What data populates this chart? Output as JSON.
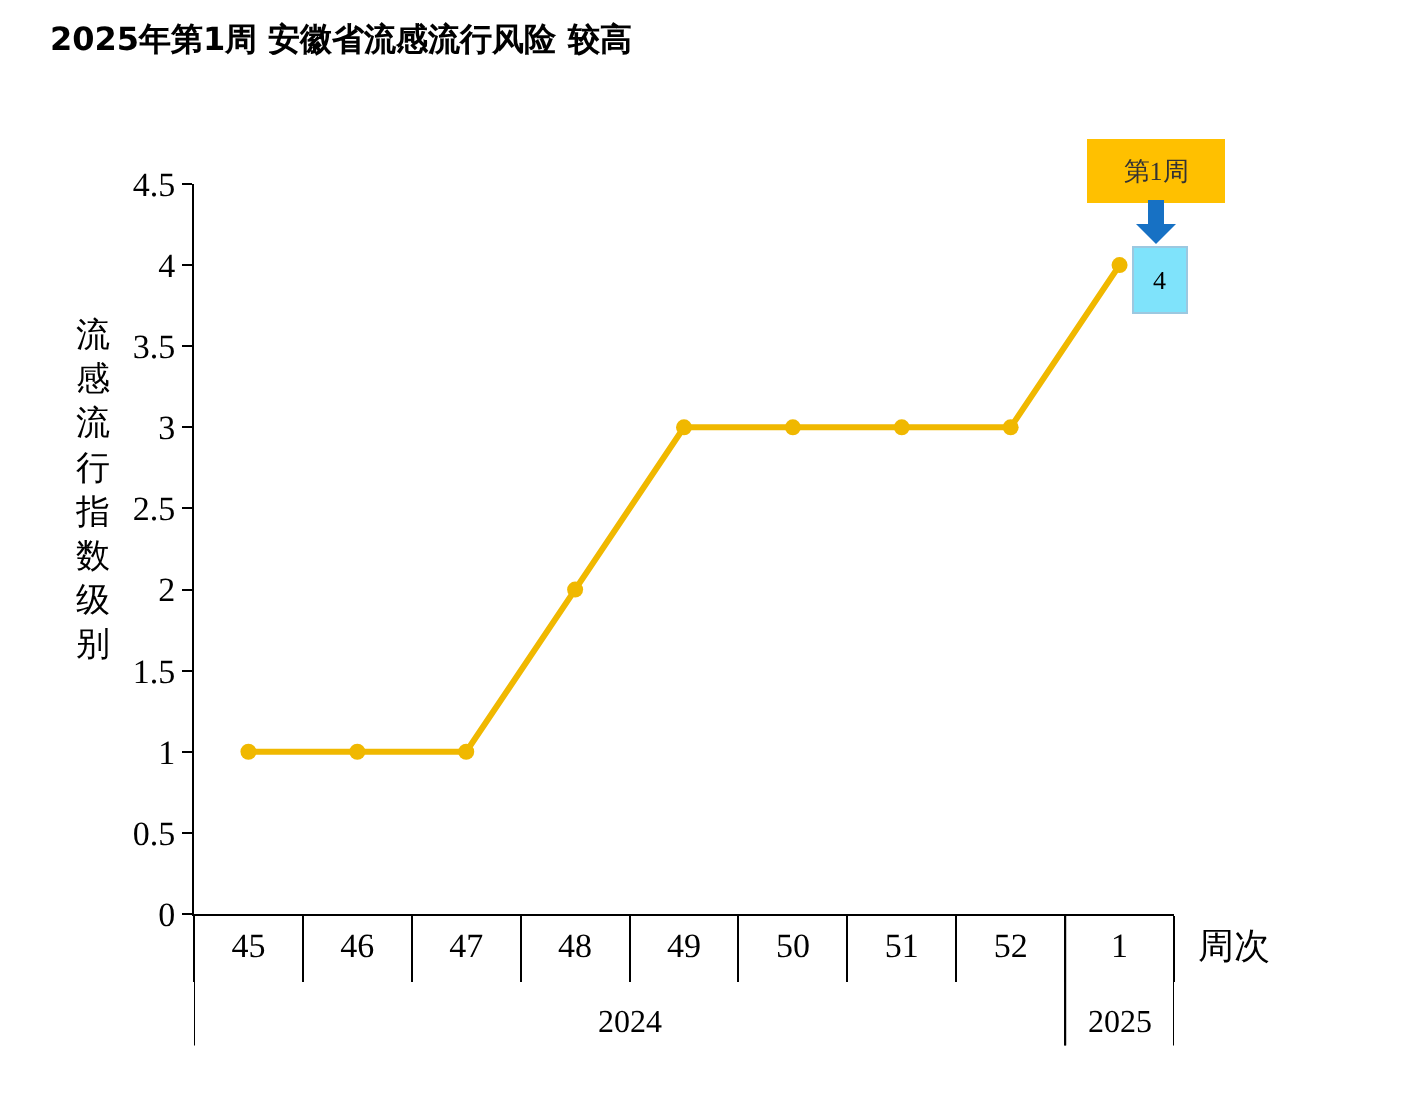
{
  "chart_data": {
    "type": "line",
    "title": "2025年第1周 安徽省流感流行风险 较高",
    "xlabel": "周次",
    "ylabel": "流感流行指数级别",
    "categories": [
      "45",
      "46",
      "47",
      "48",
      "49",
      "50",
      "51",
      "52",
      "1"
    ],
    "series": [
      {
        "color": "#f0b800",
        "values": [
          1,
          1,
          1,
          2,
          3,
          3,
          3,
          3,
          4
        ],
        "value_labels": [
          null,
          null,
          null,
          null,
          null,
          null,
          null,
          null,
          "4"
        ]
      }
    ],
    "ylim": [
      0,
      4.5
    ],
    "yticks": [
      0,
      0.5,
      1,
      1.5,
      2,
      2.5,
      3,
      3.5,
      4,
      4.5
    ],
    "grid": false,
    "marker": "circle",
    "line_style": "solid",
    "annotations": [
      "2024",
      "2025",
      "第1周"
    ]
  }
}
